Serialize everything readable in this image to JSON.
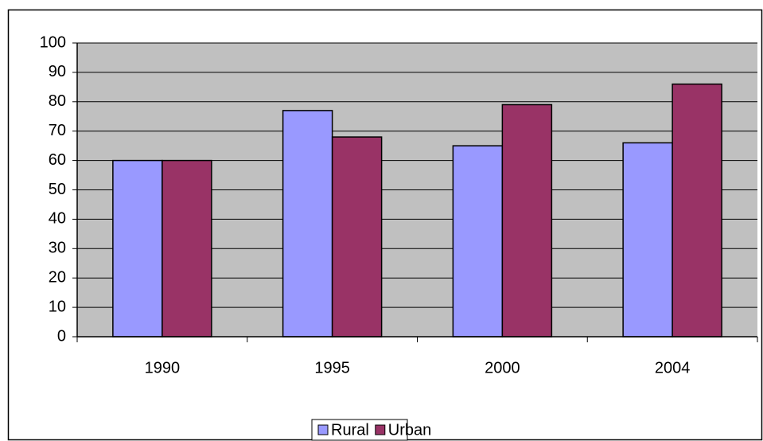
{
  "chart_data": {
    "type": "bar",
    "categories": [
      "1990",
      "1995",
      "2000",
      "2004"
    ],
    "series": [
      {
        "name": "Rural",
        "color": "#9999ff",
        "values": [
          60,
          77,
          65,
          66
        ]
      },
      {
        "name": "Urban",
        "color": "#993366",
        "values": [
          60,
          68,
          79,
          86
        ]
      }
    ],
    "ylim": [
      0,
      100
    ],
    "yticks": [
      0,
      10,
      20,
      30,
      40,
      50,
      60,
      70,
      80,
      90,
      100
    ],
    "grid": true,
    "legend": "bottom",
    "plot_background": "#c0c0c0"
  }
}
